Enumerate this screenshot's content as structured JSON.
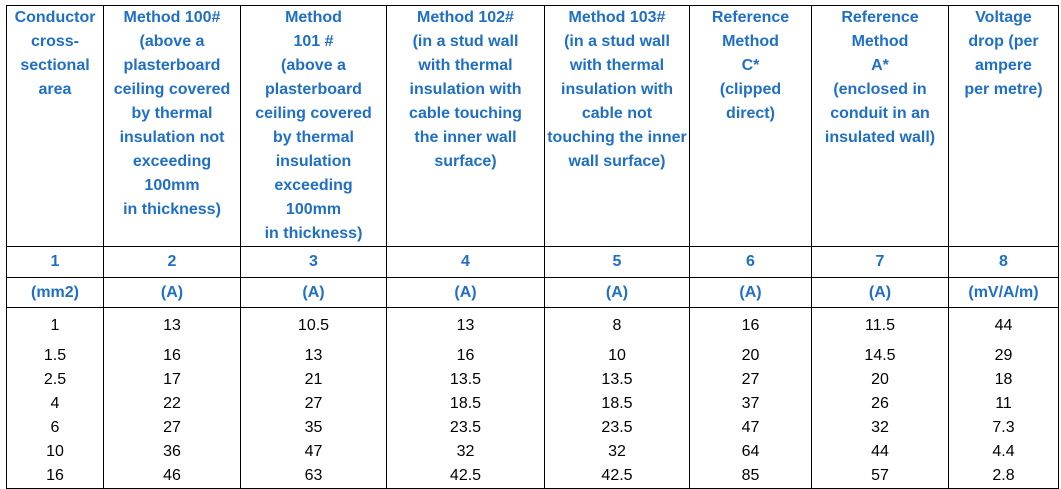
{
  "table": {
    "headers": [
      "Conductor\ncross-\nsectional\narea",
      "Method 100#\n(above a\nplasterboard\nceiling covered\nby thermal\ninsulation not\nexceeding\n100mm\nin thickness)",
      "Method\n101 #\n(above a\nplasterboard\nceiling covered\nby thermal\ninsulation\nexceeding\n100mm\nin thickness)",
      "Method 102#\n(in a stud wall\nwith thermal\ninsulation with\ncable touching\nthe inner wall\nsurface)",
      "Method 103#\n(in a stud wall\nwith thermal\ninsulation with\ncable not\ntouching the inner\nwall surface)",
      "Reference\nMethod\nC*\n(clipped\ndirect)",
      "Reference\nMethod\nA*\n(enclosed in\nconduit in an\ninsulated wall)",
      "Voltage\ndrop (per\nampere\nper metre)"
    ],
    "column_numbers": [
      "1",
      "2",
      "3",
      "4",
      "5",
      "6",
      "7",
      "8"
    ],
    "units": [
      "(mm2)",
      "(A)",
      "(A)",
      "(A)",
      "(A)",
      "(A)",
      "(A)",
      "(mV/A/m)"
    ],
    "rows": [
      [
        "1",
        "13",
        "10.5",
        "13",
        "8",
        "16",
        "11.5",
        "44"
      ],
      [
        "1.5",
        "16",
        "13",
        "16",
        "10",
        "20",
        "14.5",
        "29"
      ],
      [
        "2.5",
        "17",
        "21",
        "13.5",
        "13.5",
        "27",
        "20",
        "18"
      ],
      [
        "4",
        "22",
        "27",
        "18.5",
        "18.5",
        "37",
        "26",
        "11"
      ],
      [
        "6",
        "27",
        "35",
        "23.5",
        "23.5",
        "47",
        "32",
        "7.3"
      ],
      [
        "10",
        "36",
        "47",
        "32",
        "32",
        "64",
        "44",
        "4.4"
      ],
      [
        "16",
        "46",
        "63",
        "42.5",
        "42.5",
        "85",
        "57",
        "2.8"
      ]
    ],
    "header_color": "#1f6fc4"
  }
}
